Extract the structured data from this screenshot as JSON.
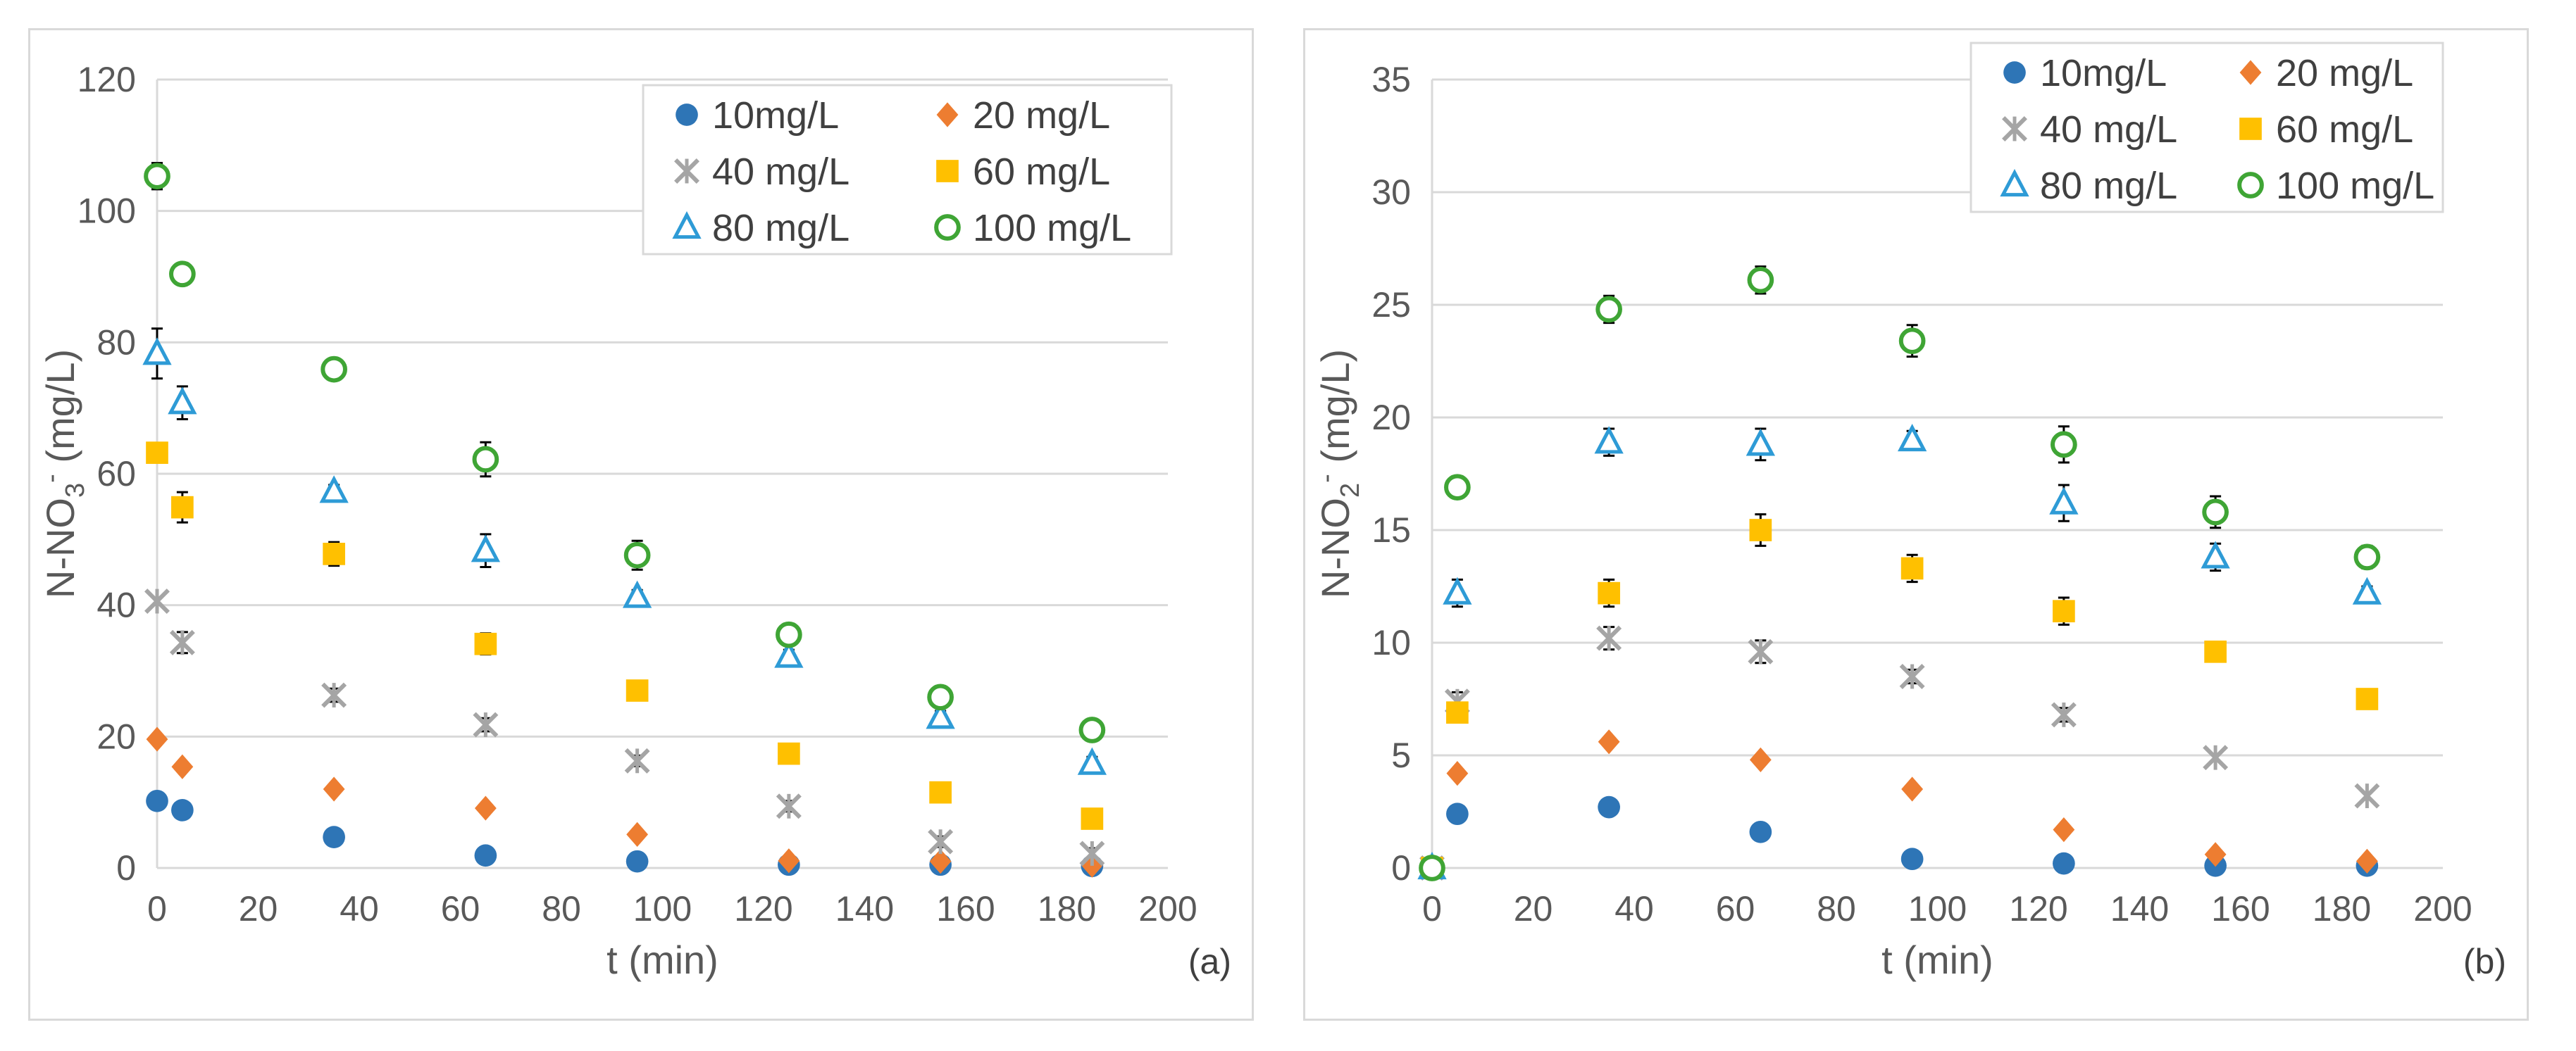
{
  "chart_data": [
    {
      "type": "scatter",
      "panel_tag": "(a)",
      "xlabel": "t (min)",
      "ylabel_main": "N-NO",
      "ylabel_sub": "3",
      "ylabel_sup": "-",
      "ylabel_unit": " (mg/L)",
      "xlim": [
        0,
        200
      ],
      "ylim": [
        0,
        120
      ],
      "xticks": [
        0,
        20,
        40,
        60,
        80,
        100,
        120,
        140,
        160,
        180,
        200
      ],
      "yticks": [
        0,
        20,
        40,
        60,
        80,
        100,
        120
      ],
      "grid": true,
      "legend_position": "top-right",
      "x": [
        0,
        5,
        35,
        65,
        95,
        125,
        155,
        185
      ],
      "series": [
        {
          "name": "10mg/L",
          "marker": "circle",
          "color": "#2e75b6",
          "values": [
            10.2,
            8.8,
            4.7,
            1.9,
            1.0,
            0.5,
            0.5,
            0.3
          ]
        },
        {
          "name": "20 mg/L",
          "marker": "diamond",
          "color": "#ed7d31",
          "values": [
            19.6,
            15.4,
            12.0,
            9.1,
            5.1,
            1.1,
            1.0,
            0.4
          ]
        },
        {
          "name": "40 mg/L",
          "marker": "star",
          "color": "#a5a5a5",
          "values": [
            40.6,
            34.3,
            26.3,
            21.8,
            16.3,
            9.4,
            4.0,
            2.2
          ]
        },
        {
          "name": "60 mg/L",
          "marker": "square",
          "color": "#ffc000",
          "values": [
            63.2,
            54.9,
            47.8,
            34.1,
            27.0,
            17.4,
            11.5,
            7.5
          ]
        },
        {
          "name": "80 mg/L",
          "marker": "triangle",
          "color": "#2e9bd6",
          "values": [
            78.3,
            70.8,
            57.3,
            48.3,
            41.3,
            32.2,
            22.9,
            15.9
          ]
        },
        {
          "name": "100 mg/L",
          "marker": "ring",
          "color": "#3fa535",
          "values": [
            105.3,
            90.4,
            75.9,
            62.2,
            47.6,
            35.5,
            26.0,
            21.0
          ]
        }
      ],
      "error_bars": [
        {
          "series": "100 mg/L",
          "x": [
            0,
            5,
            35,
            65,
            95,
            125,
            155,
            185
          ],
          "err": [
            2.0,
            1.6,
            1.2,
            2.6,
            2.2,
            1.3,
            1.4,
            1.2
          ]
        },
        {
          "series": "80 mg/L",
          "x": [
            0,
            5,
            35,
            65,
            95,
            125,
            155,
            185
          ],
          "err": [
            3.8,
            2.5,
            1.0,
            2.5,
            1.0,
            1.0,
            1.0,
            1.0
          ]
        },
        {
          "series": "60 mg/L",
          "x": [
            0,
            5,
            35,
            65
          ],
          "err": [
            1.5,
            2.3,
            1.8,
            1.6
          ]
        },
        {
          "series": "40 mg/L",
          "x": [
            5,
            35,
            65,
            95,
            125,
            155,
            185
          ],
          "err": [
            1.6,
            1.0,
            1.0,
            0.8,
            0.8,
            0.8,
            0.8
          ]
        }
      ]
    },
    {
      "type": "scatter",
      "panel_tag": "(b)",
      "xlabel": "t (min)",
      "ylabel_main": "N-NO",
      "ylabel_sub": "2",
      "ylabel_sup": "-",
      "ylabel_unit": " (mg/L)",
      "xlim": [
        0,
        200
      ],
      "ylim": [
        0,
        35
      ],
      "xticks": [
        0,
        20,
        40,
        60,
        80,
        100,
        120,
        140,
        160,
        180,
        200
      ],
      "yticks": [
        0,
        5,
        10,
        15,
        20,
        25,
        30,
        35
      ],
      "grid": true,
      "legend_position": "top-right",
      "x": [
        0,
        5,
        35,
        65,
        95,
        125,
        155,
        185
      ],
      "series": [
        {
          "name": "10mg/L",
          "marker": "circle",
          "color": "#2e75b6",
          "values": [
            0.0,
            2.4,
            2.7,
            1.6,
            0.4,
            0.2,
            0.1,
            0.1
          ]
        },
        {
          "name": "20 mg/L",
          "marker": "diamond",
          "color": "#ed7d31",
          "values": [
            0.0,
            4.2,
            5.6,
            4.8,
            3.5,
            1.7,
            0.6,
            0.3
          ]
        },
        {
          "name": "40 mg/L",
          "marker": "star",
          "color": "#a5a5a5",
          "values": [
            0.0,
            7.4,
            10.2,
            9.6,
            8.5,
            6.8,
            4.9,
            3.2
          ]
        },
        {
          "name": "60 mg/L",
          "marker": "square",
          "color": "#ffc000",
          "values": [
            0.0,
            6.9,
            12.2,
            15.0,
            13.3,
            11.4,
            9.6,
            7.5
          ]
        },
        {
          "name": "80 mg/L",
          "marker": "triangle",
          "color": "#2e9bd6",
          "values": [
            0.0,
            12.2,
            18.9,
            18.8,
            19.0,
            16.2,
            13.8,
            12.2
          ]
        },
        {
          "name": "100 mg/L",
          "marker": "ring",
          "color": "#3fa535",
          "values": [
            0.0,
            16.9,
            24.8,
            26.1,
            23.4,
            18.8,
            15.8,
            13.8
          ]
        }
      ],
      "error_bars": [
        {
          "series": "100 mg/L",
          "x": [
            5,
            35,
            65,
            95,
            125,
            155,
            185
          ],
          "err": [
            0.3,
            0.6,
            0.6,
            0.7,
            0.8,
            0.7,
            0.5
          ]
        },
        {
          "series": "80 mg/L",
          "x": [
            5,
            35,
            65,
            95,
            125,
            155,
            185
          ],
          "err": [
            0.6,
            0.6,
            0.7,
            0.4,
            0.8,
            0.6,
            0.3
          ]
        },
        {
          "series": "60 mg/L",
          "x": [
            5,
            35,
            65,
            95,
            125,
            155,
            185
          ],
          "err": [
            0.4,
            0.6,
            0.7,
            0.6,
            0.6,
            0.4,
            0.4
          ]
        },
        {
          "series": "40 mg/L",
          "x": [
            5,
            35,
            65,
            95,
            125
          ],
          "err": [
            0.4,
            0.5,
            0.5,
            0.3,
            0.3
          ]
        }
      ]
    }
  ]
}
